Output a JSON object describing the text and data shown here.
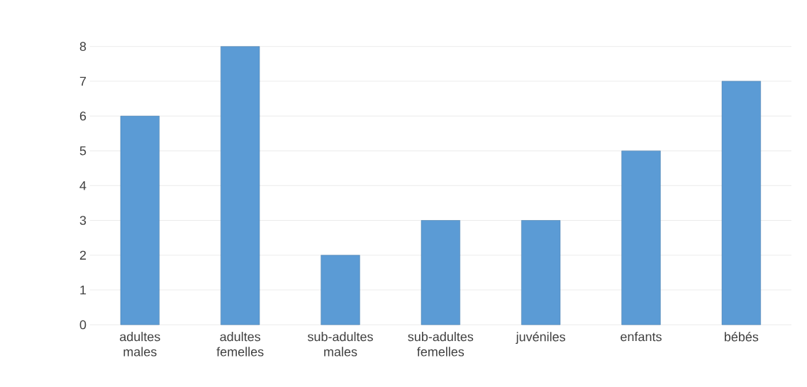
{
  "chart_data": {
    "type": "bar",
    "categories": [
      "adultes males",
      "adultes femelles",
      "sub-adultes males",
      "sub-adultes femelles",
      "juvéniles",
      "enfants",
      "bébés"
    ],
    "values": [
      6,
      8,
      2,
      3,
      3,
      5,
      7
    ],
    "color": "#5b9bd5",
    "ylim": [
      0,
      8
    ],
    "yticks": [
      0,
      1,
      2,
      3,
      4,
      5,
      6,
      7,
      8
    ],
    "grid": "y"
  }
}
